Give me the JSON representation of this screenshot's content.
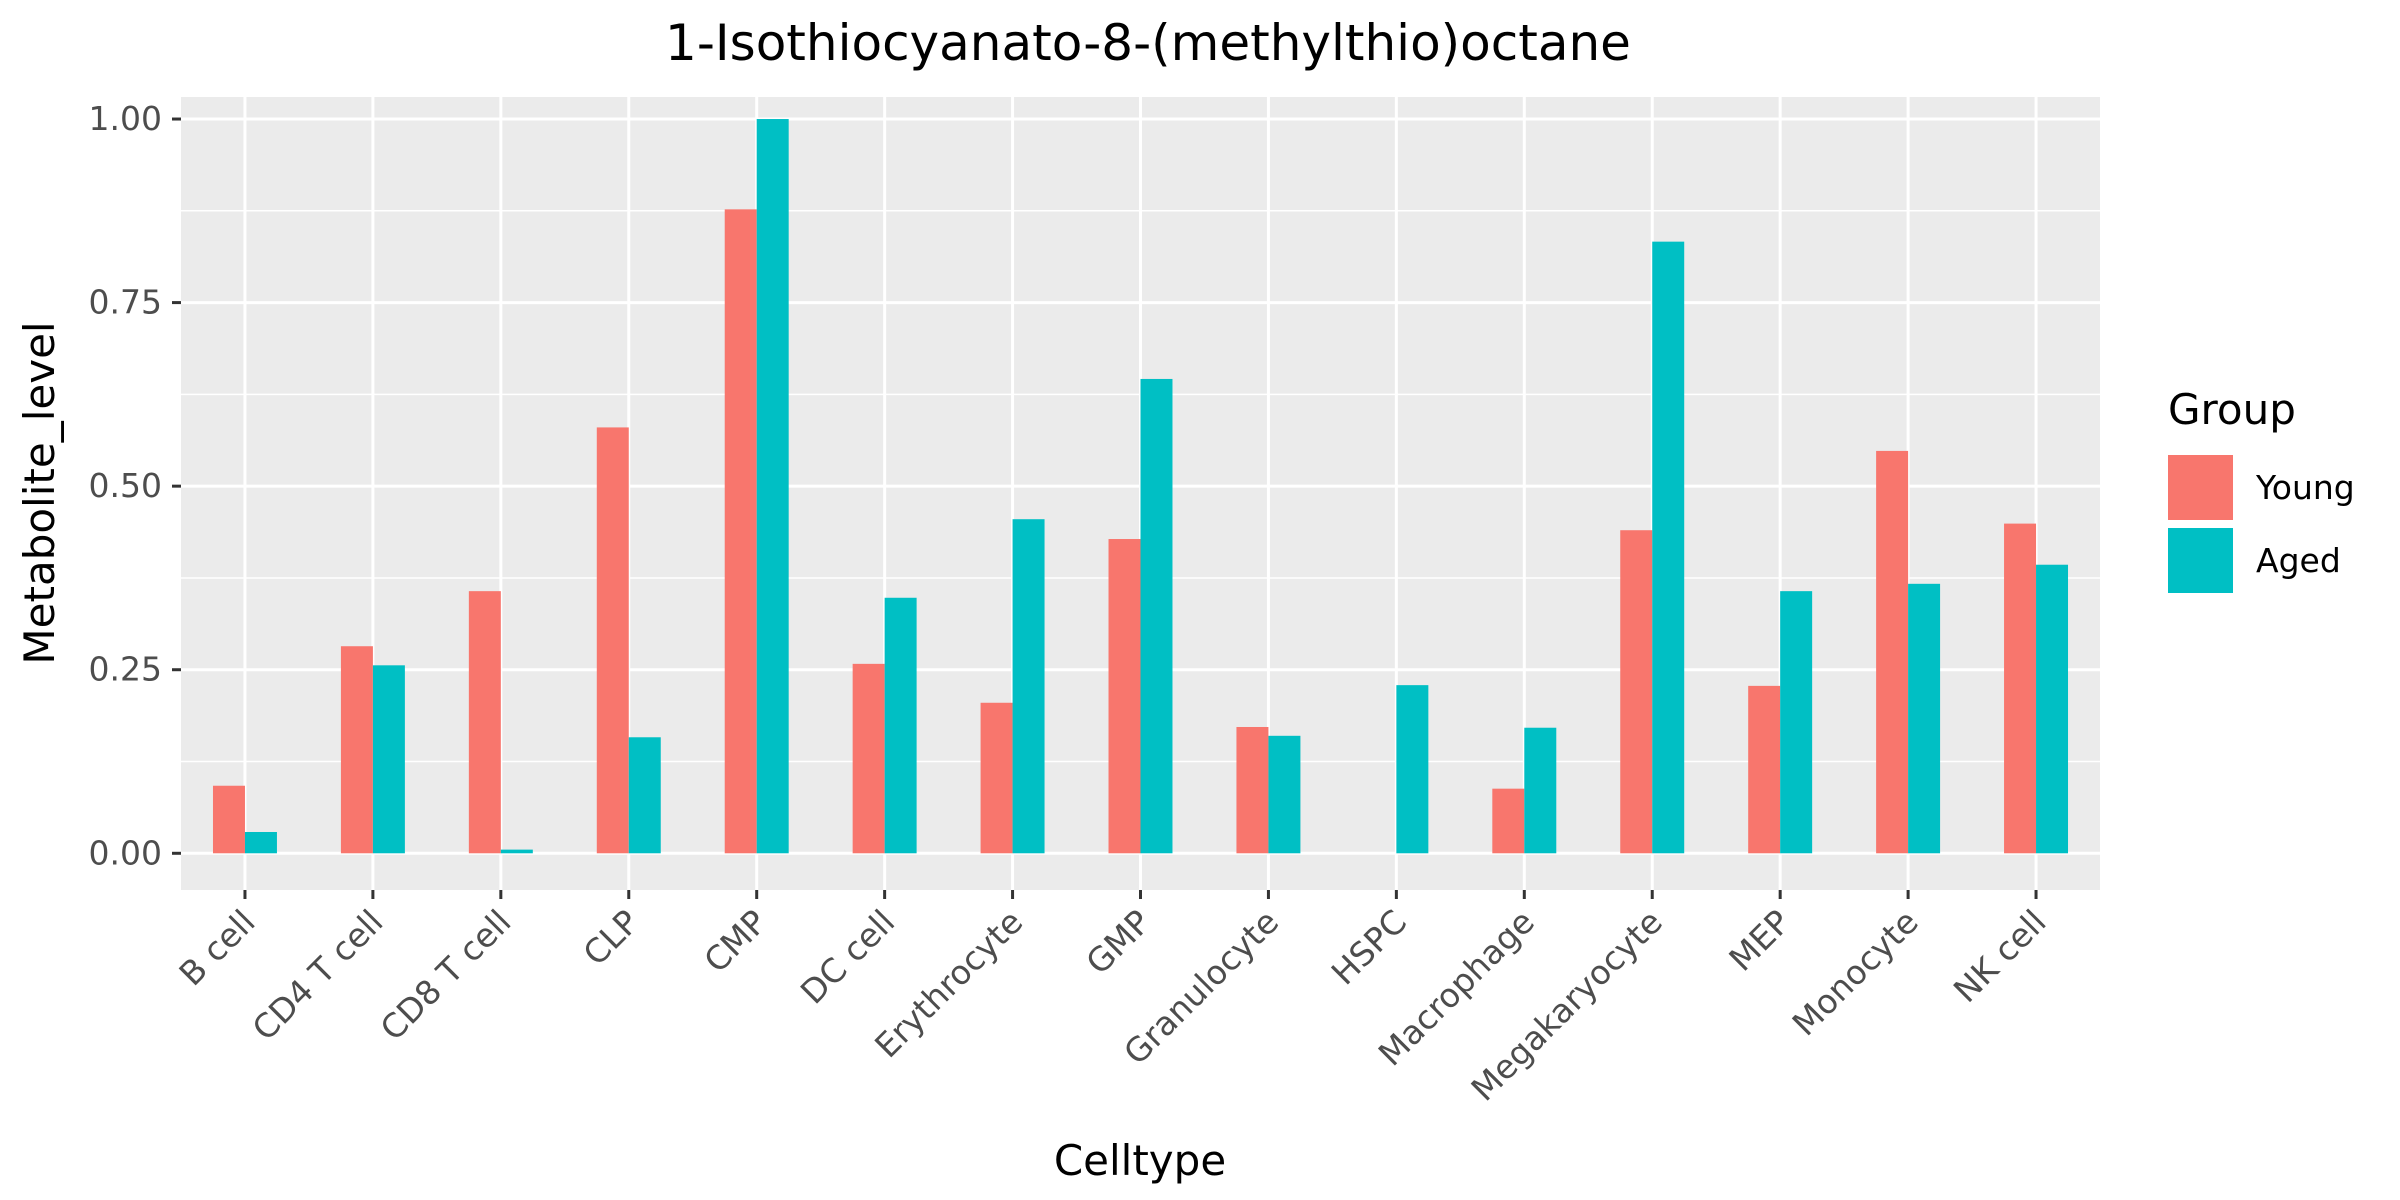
{
  "chart_data": {
    "type": "bar",
    "title": "1-Isothiocyanato-8-(methylthio)octane",
    "xlabel": "Celltype",
    "ylabel": "Metabolite_level",
    "ylim": [
      -0.05,
      1.03
    ],
    "yticks": [
      0,
      0.25,
      0.5,
      0.75,
      1
    ],
    "ytick_labels": [
      "0.00",
      "0.25",
      "0.50",
      "0.75",
      "1.00"
    ],
    "grid": true,
    "legend": {
      "title": "Group",
      "position": "right"
    },
    "categories": [
      "B cell",
      "CD4 T cell",
      "CD8 T cell",
      "CLP",
      "CMP",
      "DC cell",
      "Erythrocyte",
      "GMP",
      "Granulocyte",
      "HSPC",
      "Macrophage",
      "Megakaryocyte",
      "MEP",
      "Monocyte",
      "NK cell"
    ],
    "series": [
      {
        "name": "Young",
        "color": "#F8766D",
        "values": [
          0.092,
          0.282,
          0.357,
          0.58,
          0.877,
          0.258,
          0.205,
          0.428,
          0.172,
          0.0,
          0.088,
          0.44,
          0.228,
          0.548,
          0.449
        ]
      },
      {
        "name": "Aged",
        "color": "#00BFC4",
        "values": [
          0.029,
          0.256,
          0.005,
          0.158,
          1.0,
          0.348,
          0.455,
          0.646,
          0.16,
          0.229,
          0.171,
          0.833,
          0.357,
          0.367,
          0.393
        ]
      }
    ]
  }
}
